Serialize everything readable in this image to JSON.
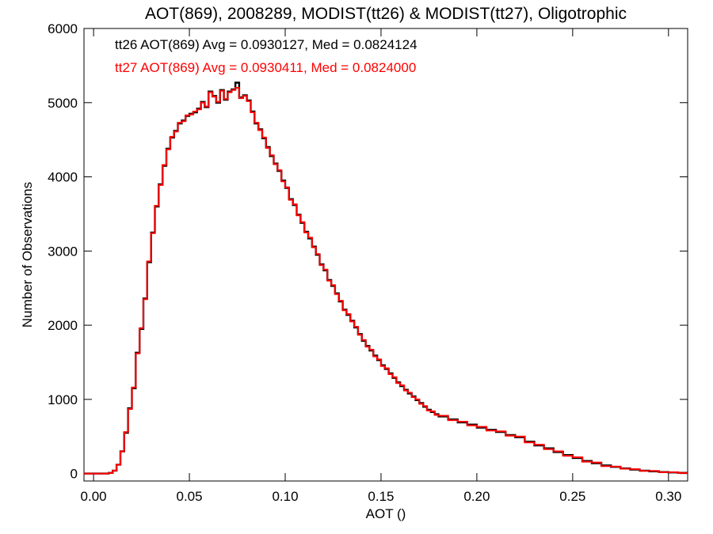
{
  "chart_data": {
    "type": "line",
    "title": "AOT(869), 2008289, MODIST(tt26) & MODIST(tt27), Oligotrophic",
    "xlabel": "AOT ()",
    "ylabel": "Number of Observations",
    "xlim": [
      -0.005,
      0.31
    ],
    "ylim": [
      -100,
      6000
    ],
    "xticks": [
      "0.00",
      "0.05",
      "0.10",
      "0.15",
      "0.20",
      "0.25",
      "0.30"
    ],
    "xtick_values": [
      0.0,
      0.05,
      0.1,
      0.15,
      0.2,
      0.25,
      0.3
    ],
    "yticks": [
      "0",
      "1000",
      "2000",
      "3000",
      "4000",
      "5000",
      "6000"
    ],
    "ytick_values": [
      0,
      1000,
      2000,
      3000,
      4000,
      5000,
      6000
    ],
    "grid": false,
    "annotations": [
      {
        "text": "tt26 AOT(869) Avg = 0.0930127, Med = 0.0824124",
        "color": "#000000"
      },
      {
        "text": "tt27 AOT(869) Avg = 0.0930411, Med = 0.0824000",
        "color": "#ff0000"
      }
    ],
    "series": [
      {
        "color": "#000000",
        "style": "step",
        "x": [
          -0.005,
          0.008,
          0.01,
          0.012,
          0.014,
          0.016,
          0.018,
          0.02,
          0.022,
          0.024,
          0.026,
          0.028,
          0.03,
          0.032,
          0.034,
          0.036,
          0.038,
          0.04,
          0.042,
          0.044,
          0.046,
          0.048,
          0.05,
          0.052,
          0.054,
          0.056,
          0.058,
          0.06,
          0.062,
          0.064,
          0.066,
          0.068,
          0.07,
          0.072,
          0.074,
          0.076,
          0.078,
          0.08,
          0.082,
          0.084,
          0.086,
          0.088,
          0.09,
          0.092,
          0.094,
          0.096,
          0.098,
          0.1,
          0.102,
          0.104,
          0.106,
          0.108,
          0.11,
          0.112,
          0.114,
          0.116,
          0.118,
          0.12,
          0.122,
          0.124,
          0.126,
          0.128,
          0.13,
          0.132,
          0.134,
          0.136,
          0.138,
          0.14,
          0.142,
          0.144,
          0.146,
          0.148,
          0.15,
          0.152,
          0.154,
          0.156,
          0.158,
          0.16,
          0.162,
          0.164,
          0.166,
          0.168,
          0.17,
          0.172,
          0.174,
          0.176,
          0.178,
          0.18,
          0.185,
          0.19,
          0.195,
          0.2,
          0.205,
          0.21,
          0.215,
          0.22,
          0.225,
          0.23,
          0.235,
          0.24,
          0.245,
          0.25,
          0.255,
          0.26,
          0.265,
          0.27,
          0.275,
          0.28,
          0.285,
          0.29,
          0.295,
          0.3,
          0.305
        ],
        "y": [
          0,
          10,
          40,
          120,
          300,
          550,
          880,
          1150,
          1630,
          1950,
          2360,
          2850,
          3250,
          3600,
          3900,
          4150,
          4380,
          4530,
          4620,
          4720,
          4760,
          4820,
          4850,
          4870,
          4920,
          5010,
          4940,
          5150,
          5090,
          5000,
          5170,
          5040,
          5150,
          5180,
          5270,
          5070,
          5100,
          5030,
          4880,
          4720,
          4640,
          4520,
          4400,
          4280,
          4180,
          4080,
          3950,
          3850,
          3700,
          3620,
          3490,
          3380,
          3260,
          3170,
          3060,
          2950,
          2820,
          2740,
          2610,
          2530,
          2430,
          2320,
          2210,
          2140,
          2060,
          1970,
          1880,
          1790,
          1720,
          1660,
          1590,
          1530,
          1460,
          1410,
          1350,
          1290,
          1230,
          1180,
          1130,
          1080,
          1040,
          990,
          950,
          900,
          860,
          830,
          800,
          770,
          730,
          690,
          660,
          620,
          590,
          560,
          520,
          490,
          430,
          380,
          340,
          290,
          250,
          210,
          170,
          140,
          110,
          90,
          70,
          55,
          40,
          30,
          20,
          15,
          10
        ]
      },
      {
        "color": "#ff0000",
        "style": "step",
        "x": [
          -0.005,
          0.008,
          0.01,
          0.012,
          0.014,
          0.016,
          0.018,
          0.02,
          0.022,
          0.024,
          0.026,
          0.028,
          0.03,
          0.032,
          0.034,
          0.036,
          0.038,
          0.04,
          0.042,
          0.044,
          0.046,
          0.048,
          0.05,
          0.052,
          0.054,
          0.056,
          0.058,
          0.06,
          0.062,
          0.064,
          0.066,
          0.068,
          0.07,
          0.072,
          0.074,
          0.076,
          0.078,
          0.08,
          0.082,
          0.084,
          0.086,
          0.088,
          0.09,
          0.092,
          0.094,
          0.096,
          0.098,
          0.1,
          0.102,
          0.104,
          0.106,
          0.108,
          0.11,
          0.112,
          0.114,
          0.116,
          0.118,
          0.12,
          0.122,
          0.124,
          0.126,
          0.128,
          0.13,
          0.132,
          0.134,
          0.136,
          0.138,
          0.14,
          0.142,
          0.144,
          0.146,
          0.148,
          0.15,
          0.152,
          0.154,
          0.156,
          0.158,
          0.16,
          0.162,
          0.164,
          0.166,
          0.168,
          0.17,
          0.172,
          0.174,
          0.176,
          0.178,
          0.18,
          0.185,
          0.19,
          0.195,
          0.2,
          0.205,
          0.21,
          0.215,
          0.22,
          0.225,
          0.23,
          0.235,
          0.24,
          0.245,
          0.25,
          0.255,
          0.26,
          0.265,
          0.27,
          0.275,
          0.28,
          0.285,
          0.29,
          0.295,
          0.3,
          0.305
        ],
        "y": [
          0,
          10,
          40,
          120,
          300,
          560,
          870,
          1160,
          1620,
          1960,
          2350,
          2860,
          3240,
          3610,
          3890,
          4160,
          4370,
          4540,
          4610,
          4730,
          4750,
          4830,
          4840,
          4880,
          4910,
          5000,
          4950,
          5140,
          5080,
          5010,
          5160,
          5050,
          5140,
          5170,
          5200,
          5060,
          5090,
          5020,
          4870,
          4730,
          4630,
          4530,
          4390,
          4290,
          4170,
          4090,
          3940,
          3860,
          3690,
          3630,
          3480,
          3390,
          3250,
          3180,
          3050,
          2960,
          2810,
          2750,
          2600,
          2540,
          2420,
          2330,
          2200,
          2150,
          2050,
          1980,
          1870,
          1800,
          1710,
          1670,
          1580,
          1540,
          1450,
          1420,
          1340,
          1300,
          1220,
          1190,
          1120,
          1090,
          1030,
          1000,
          940,
          910,
          850,
          840,
          790,
          780,
          720,
          700,
          650,
          630,
          580,
          570,
          510,
          500,
          420,
          390,
          330,
          300,
          240,
          220,
          160,
          150,
          100,
          95,
          65,
          60,
          35,
          35,
          18,
          18,
          8
        ]
      }
    ]
  }
}
